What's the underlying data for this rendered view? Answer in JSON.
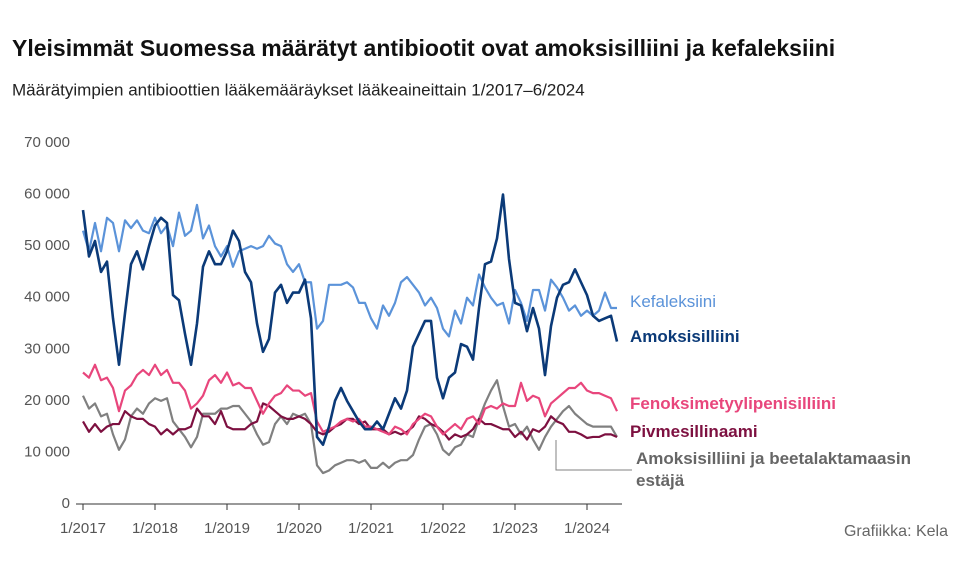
{
  "chart_data": {
    "type": "line",
    "title": "Yleisimmät Suomessa määrätyt antibiootit ovat amoksisilliini ja kefaleksiini",
    "subtitle": "Määrätyimpien antibioottien lääkemääräykset lääkeaineittain 1/2017–6/2024",
    "source": "Grafiikka: Kela",
    "categories": [
      "1/2017",
      null,
      null,
      null,
      null,
      null,
      null,
      null,
      null,
      null,
      null,
      null,
      "1/2018",
      null,
      null,
      null,
      null,
      null,
      null,
      null,
      null,
      null,
      null,
      null,
      "1/2019",
      null,
      null,
      null,
      null,
      null,
      null,
      null,
      null,
      null,
      null,
      null,
      "1/2020",
      null,
      null,
      null,
      null,
      null,
      null,
      null,
      null,
      null,
      null,
      null,
      "1/2021",
      null,
      null,
      null,
      null,
      null,
      null,
      null,
      null,
      null,
      null,
      null,
      "1/2022",
      null,
      null,
      null,
      null,
      null,
      null,
      null,
      null,
      null,
      null,
      null,
      "1/2023",
      null,
      null,
      null,
      null,
      null,
      null,
      null,
      null,
      null,
      null,
      null,
      "1/2024",
      null,
      null,
      null,
      null,
      null
    ],
    "ylim": [
      0,
      70000
    ],
    "yticks": [
      {
        "value": 0,
        "label": "0"
      },
      {
        "value": 10000,
        "label": "10 000"
      },
      {
        "value": 20000,
        "label": "20 000"
      },
      {
        "value": 30000,
        "label": "30 000"
      },
      {
        "value": 40000,
        "label": "40 000"
      },
      {
        "value": 50000,
        "label": "50 000"
      },
      {
        "value": 60000,
        "label": "60 000"
      },
      {
        "value": 70000,
        "label": "70 000"
      }
    ],
    "grid": false,
    "series": [
      {
        "name": "Kefaleksiini",
        "color": "#5b93d9",
        "values": [
          53000,
          49000,
          54500,
          49000,
          55500,
          54500,
          49000,
          55000,
          53500,
          55000,
          53000,
          52500,
          55500,
          52500,
          54000,
          50000,
          56500,
          52000,
          53000,
          58000,
          51500,
          54000,
          50000,
          48000,
          50000,
          46000,
          49000,
          49500,
          50000,
          49500,
          50000,
          52000,
          50500,
          50000,
          46500,
          45000,
          46500,
          43000,
          43000,
          34000,
          35500,
          42500,
          42500,
          42500,
          43000,
          42000,
          39000,
          39000,
          36000,
          34000,
          38500,
          36500,
          39000,
          43000,
          44000,
          42500,
          41000,
          38500,
          40000,
          38000,
          34000,
          32500,
          37500,
          35000,
          40000,
          38500,
          44500,
          42000,
          40000,
          38500,
          39000,
          35000,
          41500,
          39000,
          35500,
          41500,
          41500,
          37500,
          43500,
          42000,
          40000,
          37500,
          38500,
          36500,
          37500,
          36500,
          37500,
          41000,
          38000,
          38000
        ]
      },
      {
        "name": "Amoksisilliini",
        "color": "#0b3a78",
        "values": [
          57000,
          48000,
          51000,
          45000,
          47000,
          36000,
          27000,
          37000,
          46500,
          49000,
          45500,
          50000,
          54000,
          55500,
          54500,
          40500,
          39500,
          33000,
          27000,
          35000,
          46000,
          49000,
          46500,
          46500,
          49000,
          53000,
          51000,
          45000,
          43000,
          35000,
          29500,
          32000,
          41000,
          42500,
          39000,
          41000,
          41000,
          43500,
          36000,
          13000,
          11500,
          15000,
          20000,
          22500,
          20000,
          18000,
          16000,
          14500,
          14500,
          16000,
          14500,
          17500,
          20500,
          18500,
          22000,
          30500,
          33000,
          35500,
          35500,
          24500,
          20500,
          24500,
          25500,
          31000,
          30500,
          28000,
          38000,
          46500,
          47000,
          51500,
          60000,
          47500,
          39000,
          38500,
          33500,
          38000,
          34000,
          25000,
          34500,
          40000,
          42500,
          43000,
          45500,
          43000,
          40500,
          36500,
          35500,
          36000,
          36500,
          31500
        ]
      },
      {
        "name": "Fenoksimetyylipenisilliini",
        "color": "#e8467c",
        "values": [
          25500,
          24500,
          27000,
          24000,
          24500,
          22500,
          18000,
          22000,
          23000,
          25000,
          26000,
          25000,
          27000,
          25000,
          26000,
          23500,
          23500,
          22000,
          18500,
          19500,
          21000,
          24000,
          25000,
          23500,
          25500,
          23000,
          23500,
          22500,
          22500,
          20000,
          17500,
          19500,
          21000,
          21500,
          23000,
          22000,
          22000,
          21000,
          21500,
          16000,
          14000,
          14500,
          15000,
          16000,
          16500,
          16000,
          16500,
          15000,
          15000,
          14500,
          14000,
          13500,
          15000,
          14500,
          13500,
          15500,
          16500,
          17500,
          17000,
          15000,
          13500,
          14500,
          15500,
          14500,
          16500,
          17000,
          15500,
          18500,
          19000,
          18500,
          19500,
          19000,
          19000,
          23500,
          20000,
          21000,
          20500,
          17000,
          19500,
          20500,
          21500,
          22500,
          22500,
          23500,
          22000,
          21500,
          21500,
          21000,
          20500,
          18000
        ]
      },
      {
        "name": "Pivmesillinaami",
        "color": "#7d1040",
        "values": [
          16000,
          14000,
          15500,
          14000,
          15000,
          15500,
          15500,
          18000,
          17000,
          16500,
          16500,
          15500,
          15000,
          13500,
          14500,
          13500,
          14500,
          14500,
          15000,
          18500,
          17000,
          17000,
          15500,
          18000,
          15000,
          14500,
          14500,
          14500,
          15500,
          16000,
          19500,
          19000,
          18000,
          17000,
          16500,
          16500,
          17000,
          16500,
          15500,
          14000,
          13500,
          14000,
          15000,
          15500,
          16500,
          16500,
          15500,
          16000,
          14500,
          14500,
          14500,
          13500,
          14000,
          13500,
          14000,
          15000,
          17000,
          16500,
          15500,
          15000,
          14000,
          12500,
          13500,
          13000,
          13500,
          14500,
          16500,
          15500,
          15500,
          15000,
          14500,
          14500,
          13000,
          14000,
          12500,
          14500,
          14000,
          15000,
          17000,
          16000,
          15500,
          14000,
          14000,
          13500,
          12800,
          13000,
          13000,
          13500,
          13500,
          13000
        ]
      },
      {
        "name": "Amoksisilliini ja beetalaktamaasin estäjä",
        "color": "#808080",
        "values": [
          21000,
          18500,
          19500,
          17000,
          17500,
          13500,
          10500,
          12500,
          17000,
          18500,
          17500,
          19500,
          20500,
          20000,
          20500,
          16000,
          14500,
          13000,
          11000,
          13000,
          17500,
          17500,
          17500,
          18500,
          18500,
          19000,
          19000,
          17500,
          16000,
          13500,
          11500,
          12000,
          15500,
          17000,
          15500,
          17500,
          17000,
          17500,
          15500,
          7500,
          6000,
          6500,
          7500,
          8000,
          8500,
          8500,
          8000,
          8500,
          7000,
          7000,
          8000,
          7000,
          8000,
          8500,
          8500,
          9500,
          12500,
          15000,
          15500,
          13500,
          10500,
          9500,
          11000,
          11500,
          13500,
          13000,
          16500,
          19500,
          22000,
          24000,
          19000,
          15000,
          15500,
          13500,
          15000,
          12500,
          10500,
          13000,
          15000,
          16500,
          18000,
          19000,
          17500,
          16500,
          15500,
          15000,
          15000,
          15000,
          15000,
          13000
        ]
      }
    ]
  }
}
